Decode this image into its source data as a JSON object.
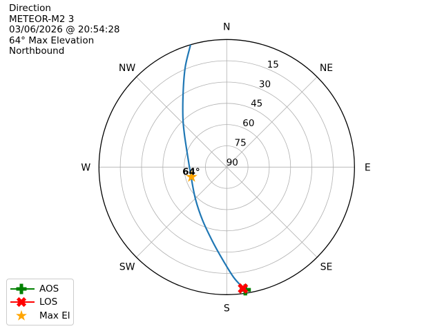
{
  "header": {
    "lines": [
      "Direction",
      "METEOR-M2 3",
      "03/06/2026 @ 20:54:28",
      "64° Max Elevation",
      "Northbound"
    ]
  },
  "chart_data": {
    "type": "polar_sky_plot",
    "title": "Direction",
    "satellite": "METEOR-M2 3",
    "timestamp": "03/06/2026 @ 20:54:28",
    "max_elevation_deg": 64,
    "pass_direction": "Northbound",
    "compass_labels": [
      "N",
      "NE",
      "E",
      "SE",
      "S",
      "SW",
      "W",
      "NW"
    ],
    "compass_azimuths_deg": [
      0,
      45,
      90,
      135,
      180,
      225,
      270,
      315
    ],
    "elevation_ticks_deg": [
      15,
      30,
      45,
      60,
      75,
      90
    ],
    "rlabel_azimuth_deg": 22.5,
    "grid_color": "#b0b0b0",
    "spine_color": "#000000",
    "legend_position": "lower-left",
    "track": {
      "name": "satellite-ground-track",
      "color": "#1f77b4",
      "points_az_el": [
        [
          343.4,
          0.4
        ],
        [
          337.7,
          13.2
        ],
        [
          330.9,
          27.1
        ],
        [
          319.0,
          42.9
        ],
        [
          307.0,
          52.8
        ],
        [
          283.1,
          62.0
        ],
        [
          251.6,
          63.8
        ],
        [
          223.8,
          58.3
        ],
        [
          204.4,
          48.8
        ],
        [
          191.1,
          37.0
        ],
        [
          182.6,
          24.8
        ],
        [
          176.4,
          12.0
        ],
        [
          172.2,
          3.9
        ]
      ]
    },
    "markers": [
      {
        "id": "aos",
        "label": "AOS",
        "shape": "plus",
        "color": "#008000",
        "az_deg": 171.4,
        "el_deg": 2.4
      },
      {
        "id": "los",
        "label": "LOS",
        "shape": "x",
        "color": "#ff0000",
        "az_deg": 172.4,
        "el_deg": 3.6
      },
      {
        "id": "max-el",
        "label": "Max El",
        "shape": "star",
        "color": "#ffa500",
        "az_deg": 254.4,
        "el_deg": 64.3,
        "annotation": "64°"
      }
    ]
  },
  "legend": {
    "items": [
      {
        "label": "AOS",
        "shape": "plus",
        "color": "#008000",
        "with_line": true
      },
      {
        "label": "LOS",
        "shape": "x",
        "color": "#ff0000",
        "with_line": true
      },
      {
        "label": "Max El",
        "shape": "star",
        "color": "#ffa500",
        "with_line": false
      }
    ]
  }
}
